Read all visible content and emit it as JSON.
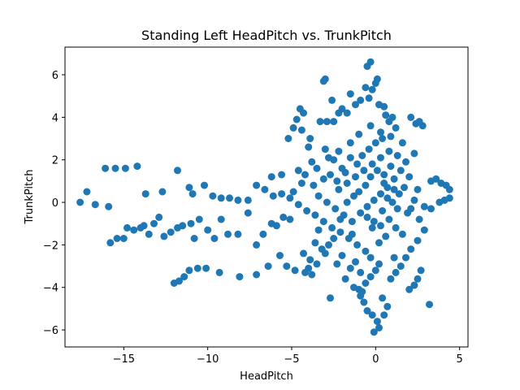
{
  "chart_data": {
    "type": "scatter",
    "title": "Standing Left HeadPitch vs. TrunkPitch",
    "xlabel": "HeadPitch",
    "ylabel": "TrunkPitch",
    "xlim": [
      -18.5,
      5.5
    ],
    "ylim": [
      -6.8,
      7.3
    ],
    "xticks": [
      -15,
      -10,
      -5,
      0,
      5
    ],
    "yticks": [
      -6,
      -4,
      -2,
      0,
      2,
      4,
      6
    ],
    "xtick_labels": [
      "−15",
      "−10",
      "−5",
      "0",
      "5"
    ],
    "ytick_labels": [
      "−6",
      "−4",
      "−2",
      "0",
      "2",
      "4",
      "6"
    ],
    "grid": false,
    "series_color": "#1f77b4",
    "points": [
      [
        -17.6,
        0.0
      ],
      [
        -17.2,
        0.5
      ],
      [
        -16.7,
        -0.1
      ],
      [
        -16.1,
        1.6
      ],
      [
        -15.9,
        -0.2
      ],
      [
        -15.5,
        1.6
      ],
      [
        -14.9,
        1.6
      ],
      [
        -14.2,
        1.7
      ],
      [
        -13.7,
        0.4
      ],
      [
        -12.7,
        0.5
      ],
      [
        -11.8,
        1.5
      ],
      [
        -11.1,
        0.7
      ],
      [
        -10.9,
        0.4
      ],
      [
        -10.2,
        0.8
      ],
      [
        -9.7,
        0.3
      ],
      [
        -9.2,
        0.2
      ],
      [
        -8.7,
        0.2
      ],
      [
        -8.2,
        0.1
      ],
      [
        -7.6,
        0.1
      ],
      [
        -7.1,
        0.8
      ],
      [
        -6.6,
        0.6
      ],
      [
        -6.2,
        1.2
      ],
      [
        -5.6,
        1.3
      ],
      [
        -4.9,
        0.5
      ],
      [
        -4.4,
        0.9
      ],
      [
        -15.8,
        -1.9
      ],
      [
        -15.4,
        -1.7
      ],
      [
        -15.0,
        -1.7
      ],
      [
        -14.8,
        -1.2
      ],
      [
        -14.4,
        -1.3
      ],
      [
        -14.0,
        -1.2
      ],
      [
        -13.8,
        -1.1
      ],
      [
        -13.5,
        -1.5
      ],
      [
        -13.2,
        -1.0
      ],
      [
        -12.9,
        -0.7
      ],
      [
        -12.6,
        -1.6
      ],
      [
        -12.2,
        -1.4
      ],
      [
        -11.8,
        -1.2
      ],
      [
        -11.5,
        -1.1
      ],
      [
        -11.0,
        -1.0
      ],
      [
        -10.8,
        -1.7
      ],
      [
        -10.5,
        -0.8
      ],
      [
        -10.0,
        -1.3
      ],
      [
        -9.6,
        -1.7
      ],
      [
        -9.2,
        -0.8
      ],
      [
        -8.8,
        -1.5
      ],
      [
        -8.2,
        -1.5
      ],
      [
        -7.6,
        -0.5
      ],
      [
        -7.1,
        -2.0
      ],
      [
        -6.7,
        -1.5
      ],
      [
        -6.2,
        -1.0
      ],
      [
        -5.9,
        -1.1
      ],
      [
        -5.5,
        -0.7
      ],
      [
        -5.1,
        -0.8
      ],
      [
        -12.0,
        -3.8
      ],
      [
        -11.7,
        -3.7
      ],
      [
        -11.4,
        -3.5
      ],
      [
        -11.1,
        -3.2
      ],
      [
        -10.6,
        -3.1
      ],
      [
        -10.1,
        -3.1
      ],
      [
        -9.3,
        -3.3
      ],
      [
        -8.1,
        -3.5
      ],
      [
        -7.1,
        -3.4
      ],
      [
        -6.4,
        -3.0
      ],
      [
        -5.7,
        -2.5
      ],
      [
        -5.3,
        -3.0
      ],
      [
        -4.8,
        -3.2
      ],
      [
        -4.2,
        -3.3
      ],
      [
        -3.8,
        -3.4
      ],
      [
        -3.5,
        -2.9
      ],
      [
        -3.0,
        -2.4
      ],
      [
        -2.7,
        -4.5
      ],
      [
        -4.5,
        4.4
      ],
      [
        -4.3,
        4.2
      ],
      [
        -4.7,
        3.9
      ],
      [
        -4.9,
        3.5
      ],
      [
        -5.2,
        3.0
      ],
      [
        -4.4,
        3.4
      ],
      [
        -3.9,
        3.0
      ],
      [
        -3.3,
        3.8
      ],
      [
        -2.9,
        3.8
      ],
      [
        -2.5,
        3.8
      ],
      [
        -3.0,
        5.8
      ],
      [
        -3.1,
        5.7
      ],
      [
        -2.6,
        4.8
      ],
      [
        -2.2,
        4.2
      ],
      [
        -2.0,
        4.4
      ],
      [
        -1.7,
        4.2
      ],
      [
        -1.5,
        5.1
      ],
      [
        -1.2,
        4.6
      ],
      [
        -0.9,
        4.8
      ],
      [
        -0.6,
        5.4
      ],
      [
        -0.3,
        6.6
      ],
      [
        -0.5,
        6.4
      ],
      [
        -0.2,
        5.3
      ],
      [
        0.0,
        5.6
      ],
      [
        0.1,
        5.8
      ],
      [
        0.5,
        4.5
      ],
      [
        1.0,
        4.0
      ],
      [
        0.8,
        3.8
      ],
      [
        0.3,
        3.3
      ],
      [
        -0.3,
        3.6
      ],
      [
        -1.0,
        3.2
      ],
      [
        -1.5,
        2.8
      ],
      [
        -2.2,
        2.4
      ],
      [
        -2.8,
        2.1
      ],
      [
        -3.5,
        1.6
      ],
      [
        -4.0,
        2.6
      ],
      [
        2.1,
        4.0
      ],
      [
        2.4,
        3.7
      ],
      [
        2.8,
        3.6
      ],
      [
        2.6,
        3.8
      ],
      [
        3.3,
        1.0
      ],
      [
        3.6,
        1.1
      ],
      [
        3.9,
        0.9
      ],
      [
        4.2,
        0.8
      ],
      [
        4.4,
        0.6
      ],
      [
        4.4,
        0.2
      ],
      [
        4.1,
        0.1
      ],
      [
        3.8,
        0.0
      ],
      [
        3.3,
        -0.3
      ],
      [
        2.9,
        -0.2
      ],
      [
        2.5,
        0.6
      ],
      [
        2.3,
        0.1
      ],
      [
        2.1,
        -0.3
      ],
      [
        2.6,
        -0.8
      ],
      [
        2.9,
        -1.3
      ],
      [
        2.5,
        -1.8
      ],
      [
        2.1,
        -2.2
      ],
      [
        1.8,
        -2.6
      ],
      [
        1.5,
        -3.0
      ],
      [
        1.2,
        -3.3
      ],
      [
        2.7,
        -3.2
      ],
      [
        2.5,
        -3.6
      ],
      [
        2.3,
        -3.9
      ],
      [
        2.0,
        -4.1
      ],
      [
        3.2,
        -4.8
      ],
      [
        -0.1,
        -6.1
      ],
      [
        0.2,
        -5.9
      ],
      [
        0.1,
        -5.6
      ],
      [
        -0.2,
        -5.3
      ],
      [
        -0.5,
        -5.1
      ],
      [
        -0.7,
        -4.7
      ],
      [
        -0.9,
        -4.4
      ],
      [
        -1.0,
        -4.1
      ],
      [
        -0.6,
        -3.8
      ],
      [
        -0.3,
        -3.5
      ],
      [
        0.0,
        -3.2
      ],
      [
        0.2,
        -2.9
      ],
      [
        -0.3,
        -2.6
      ],
      [
        -0.6,
        -2.3
      ],
      [
        -1.1,
        -2.0
      ],
      [
        -1.6,
        -1.7
      ],
      [
        -2.1,
        -1.4
      ],
      [
        -2.6,
        -1.2
      ],
      [
        -3.1,
        -0.9
      ],
      [
        -3.6,
        -0.6
      ],
      [
        -4.1,
        -0.4
      ],
      [
        -4.6,
        -0.1
      ],
      [
        -5.1,
        0.2
      ],
      [
        -5.6,
        0.4
      ],
      [
        -6.1,
        0.3
      ],
      [
        -4.3,
        -2.4
      ],
      [
        -3.9,
        -2.7
      ],
      [
        -4.0,
        -3.1
      ],
      [
        -3.6,
        -1.9
      ],
      [
        -3.2,
        -2.2
      ],
      [
        -2.5,
        -1.7
      ],
      [
        -2.0,
        -2.5
      ],
      [
        -1.5,
        -3.1
      ],
      [
        -1.2,
        -2.8
      ],
      [
        -0.9,
        -3.3
      ],
      [
        -1.4,
        -0.9
      ],
      [
        -1.9,
        -0.6
      ],
      [
        -2.4,
        -0.3
      ],
      [
        -2.9,
        0.0
      ],
      [
        -3.4,
        0.3
      ],
      [
        -2.2,
        0.6
      ],
      [
        -1.7,
        0.9
      ],
      [
        -1.2,
        1.2
      ],
      [
        -0.7,
        1.5
      ],
      [
        -0.2,
        1.8
      ],
      [
        0.3,
        2.1
      ],
      [
        0.8,
        2.4
      ],
      [
        1.3,
        2.2
      ],
      [
        1.8,
        1.9
      ],
      [
        2.3,
        2.3
      ],
      [
        1.5,
        1.5
      ],
      [
        1.1,
        1.1
      ],
      [
        0.7,
        0.7
      ],
      [
        0.3,
        0.4
      ],
      [
        -0.1,
        0.1
      ],
      [
        -0.5,
        -0.2
      ],
      [
        -0.9,
        -0.5
      ],
      [
        -1.3,
        0.3
      ],
      [
        -1.7,
        0.0
      ],
      [
        -2.1,
        -0.8
      ],
      [
        0.4,
        -0.4
      ],
      [
        0.8,
        -0.8
      ],
      [
        1.2,
        -1.2
      ],
      [
        1.6,
        -1.5
      ],
      [
        1.9,
        -0.5
      ],
      [
        1.4,
        0.4
      ],
      [
        1.0,
        0.0
      ],
      [
        0.6,
        -1.6
      ],
      [
        0.2,
        -1.9
      ],
      [
        -0.2,
        -1.2
      ],
      [
        -0.6,
        0.8
      ],
      [
        -1.0,
        0.5
      ],
      [
        -1.4,
        -1.5
      ],
      [
        -1.8,
        1.4
      ],
      [
        -2.3,
        1.0
      ],
      [
        0.5,
        1.3
      ],
      [
        0.9,
        1.7
      ],
      [
        1.7,
        0.7
      ],
      [
        2.0,
        1.2
      ],
      [
        1.3,
        -0.3
      ],
      [
        -0.4,
        2.5
      ],
      [
        -0.8,
        2.2
      ],
      [
        0.0,
        2.8
      ],
      [
        0.4,
        3.0
      ],
      [
        0.9,
        3.1
      ],
      [
        1.2,
        3.5
      ],
      [
        1.6,
        2.8
      ],
      [
        0.6,
        4.1
      ],
      [
        0.2,
        4.6
      ],
      [
        -0.4,
        4.9
      ],
      [
        -2.7,
        1.3
      ],
      [
        -3.1,
        1.1
      ],
      [
        -3.7,
        0.8
      ],
      [
        -4.2,
        1.3
      ],
      [
        -3.4,
        -1.3
      ],
      [
        -2.8,
        -2.0
      ],
      [
        -2.3,
        -2.9
      ],
      [
        -1.8,
        -3.6
      ],
      [
        -1.3,
        -4.0
      ],
      [
        -0.8,
        -4.2
      ],
      [
        0.4,
        -4.5
      ],
      [
        0.7,
        -4.9
      ],
      [
        0.5,
        -5.3
      ],
      [
        0.9,
        -3.6
      ],
      [
        1.1,
        -2.6
      ],
      [
        -0.5,
        -0.7
      ],
      [
        -0.1,
        -0.9
      ],
      [
        0.3,
        -1.1
      ],
      [
        0.7,
        0.2
      ],
      [
        1.1,
        0.6
      ],
      [
        -1.1,
        1.8
      ],
      [
        -1.5,
        2.1
      ],
      [
        -0.3,
        1.2
      ],
      [
        0.1,
        1.5
      ],
      [
        0.5,
        0.9
      ],
      [
        -2.5,
        2.0
      ],
      [
        -2.0,
        1.6
      ],
      [
        -3.0,
        2.5
      ],
      [
        -3.8,
        1.9
      ],
      [
        -4.6,
        1.5
      ]
    ]
  }
}
